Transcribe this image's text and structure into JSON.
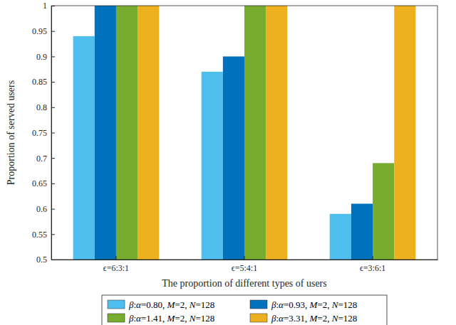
{
  "chart_data": {
    "type": "bar",
    "x_label": "The proportion of different types of users",
    "y_label": "Proportion of served users",
    "categories": [
      "ϵ=6:3:1",
      "ϵ=5:4:1",
      "ϵ=3:6:1"
    ],
    "series": [
      {
        "name": "β:α=0.80,  M=2,  N=128",
        "color": "#4DBEEE",
        "values": [
          0.94,
          0.87,
          0.59
        ]
      },
      {
        "name": "β:α=0.93,  M=2,  N=128",
        "color": "#0072BD",
        "values": [
          1,
          0.9,
          0.61
        ]
      },
      {
        "name": "β:α=1.41,  M=2,  N=128",
        "color": "#77AC30",
        "values": [
          1,
          1,
          0.69
        ]
      },
      {
        "name": "β:α=3.31,  M=2,  N=128",
        "color": "#EDB120",
        "values": [
          1,
          1,
          1
        ]
      }
    ],
    "ylim": [
      0.5,
      1
    ],
    "yticks": [
      0.5,
      0.55,
      0.6,
      0.65,
      0.7,
      0.75,
      0.8,
      0.85,
      0.9,
      0.95,
      1
    ],
    "grid": false,
    "legend": "bottom"
  }
}
